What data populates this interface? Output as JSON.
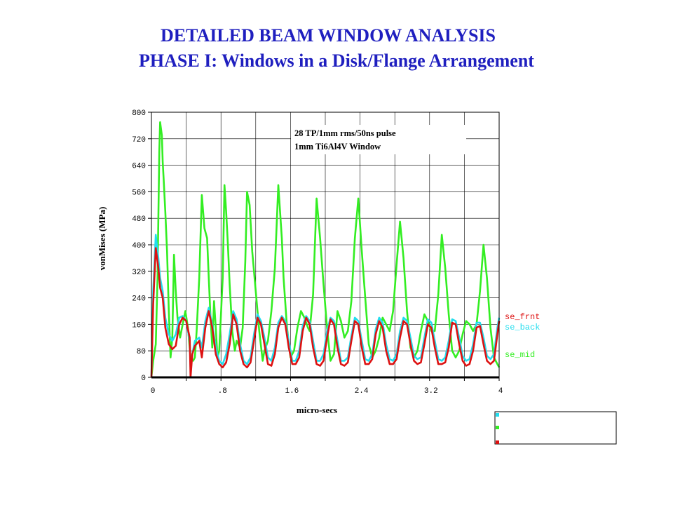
{
  "header": {
    "title": "DETAILED BEAM WINDOW ANALYSIS",
    "subtitle": "PHASE I: Windows in a Disk/Flange Arrangement"
  },
  "chart_data": {
    "type": "line",
    "xlabel": "micro-secs",
    "ylabel": "vonMises (MPa)",
    "xlim": [
      0,
      4
    ],
    "ylim": [
      0,
      800
    ],
    "x_ticks": [
      0,
      0.8,
      1.6,
      2.4,
      3.2,
      4
    ],
    "x_tick_labels": [
      "0",
      ".8",
      "1.6",
      "2.4",
      "3.2",
      "4"
    ],
    "y_ticks": [
      0,
      80,
      160,
      240,
      320,
      400,
      480,
      560,
      640,
      720,
      800
    ],
    "y_tick_labels": [
      "0",
      "80",
      "160",
      "240",
      "320",
      "400",
      "480",
      "560",
      "640",
      "720",
      "800"
    ],
    "grid": true,
    "annotation": [
      "28 TP/1mm rms/50ns pulse",
      "1mm Ti6Al4V Window"
    ],
    "legend_position": "right",
    "series": [
      {
        "name": "se_frnt",
        "color": "#dd1111",
        "x": [
          0,
          0.02,
          0.05,
          0.08,
          0.1,
          0.13,
          0.16,
          0.2,
          0.24,
          0.28,
          0.32,
          0.36,
          0.4,
          0.44,
          0.45,
          0.47,
          0.5,
          0.55,
          0.58,
          0.62,
          0.66,
          0.7,
          0.74,
          0.78,
          0.82,
          0.86,
          0.9,
          0.94,
          0.98,
          1.02,
          1.06,
          1.1,
          1.14,
          1.18,
          1.22,
          1.26,
          1.3,
          1.34,
          1.38,
          1.42,
          1.46,
          1.5,
          1.54,
          1.58,
          1.62,
          1.66,
          1.7,
          1.74,
          1.78,
          1.82,
          1.86,
          1.9,
          1.94,
          1.98,
          2.02,
          2.06,
          2.1,
          2.14,
          2.18,
          2.22,
          2.26,
          2.3,
          2.34,
          2.38,
          2.42,
          2.46,
          2.5,
          2.54,
          2.58,
          2.62,
          2.66,
          2.7,
          2.74,
          2.78,
          2.82,
          2.86,
          2.9,
          2.94,
          2.98,
          3.02,
          3.06,
          3.1,
          3.14,
          3.18,
          3.22,
          3.26,
          3.3,
          3.34,
          3.38,
          3.42,
          3.46,
          3.5,
          3.54,
          3.58,
          3.62,
          3.66,
          3.7,
          3.74,
          3.78,
          3.82,
          3.86,
          3.9,
          3.94,
          3.98,
          4.0
        ],
        "y": [
          0,
          220,
          390,
          330,
          270,
          240,
          150,
          100,
          85,
          95,
          160,
          180,
          170,
          120,
          0,
          70,
          95,
          110,
          60,
          150,
          200,
          150,
          70,
          40,
          30,
          45,
          100,
          190,
          160,
          80,
          40,
          30,
          45,
          110,
          180,
          160,
          100,
          40,
          35,
          70,
          150,
          180,
          160,
          90,
          40,
          40,
          60,
          140,
          180,
          160,
          90,
          40,
          35,
          50,
          120,
          175,
          160,
          90,
          40,
          35,
          45,
          110,
          170,
          160,
          90,
          40,
          40,
          55,
          130,
          170,
          150,
          80,
          40,
          40,
          55,
          120,
          170,
          160,
          100,
          50,
          40,
          45,
          100,
          160,
          150,
          90,
          40,
          40,
          45,
          90,
          165,
          160,
          100,
          50,
          35,
          40,
          80,
          150,
          155,
          100,
          50,
          40,
          50,
          130,
          170
        ]
      },
      {
        "name": "se_back",
        "color": "#22ddee",
        "x": [
          0,
          0.02,
          0.05,
          0.08,
          0.1,
          0.13,
          0.16,
          0.2,
          0.24,
          0.28,
          0.32,
          0.36,
          0.4,
          0.44,
          0.45,
          0.47,
          0.5,
          0.55,
          0.58,
          0.62,
          0.66,
          0.7,
          0.74,
          0.78,
          0.82,
          0.86,
          0.9,
          0.94,
          0.98,
          1.02,
          1.06,
          1.1,
          1.14,
          1.18,
          1.22,
          1.26,
          1.3,
          1.34,
          1.38,
          1.42,
          1.46,
          1.5,
          1.54,
          1.58,
          1.62,
          1.66,
          1.7,
          1.74,
          1.78,
          1.82,
          1.86,
          1.9,
          1.94,
          1.98,
          2.02,
          2.06,
          2.1,
          2.14,
          2.18,
          2.22,
          2.26,
          2.3,
          2.34,
          2.38,
          2.42,
          2.46,
          2.5,
          2.54,
          2.58,
          2.62,
          2.66,
          2.7,
          2.74,
          2.78,
          2.82,
          2.86,
          2.9,
          2.94,
          2.98,
          3.02,
          3.06,
          3.1,
          3.14,
          3.18,
          3.22,
          3.26,
          3.3,
          3.34,
          3.38,
          3.42,
          3.46,
          3.5,
          3.54,
          3.58,
          3.62,
          3.66,
          3.7,
          3.74,
          3.78,
          3.82,
          3.86,
          3.9,
          3.94,
          3.98,
          4.0
        ],
        "y": [
          0,
          260,
          430,
          360,
          300,
          260,
          180,
          130,
          110,
          130,
          180,
          185,
          170,
          110,
          30,
          70,
          110,
          120,
          90,
          170,
          210,
          160,
          90,
          50,
          40,
          70,
          130,
          200,
          175,
          100,
          50,
          40,
          60,
          130,
          190,
          170,
          120,
          60,
          50,
          90,
          165,
          185,
          170,
          110,
          50,
          50,
          80,
          155,
          185,
          170,
          110,
          50,
          50,
          70,
          140,
          180,
          170,
          110,
          50,
          50,
          60,
          125,
          180,
          170,
          110,
          55,
          50,
          70,
          145,
          180,
          165,
          100,
          55,
          50,
          70,
          140,
          180,
          170,
          120,
          65,
          55,
          60,
          120,
          175,
          165,
          110,
          55,
          50,
          60,
          110,
          175,
          170,
          120,
          65,
          50,
          55,
          100,
          165,
          165,
          120,
          65,
          55,
          70,
          150,
          180
        ]
      },
      {
        "name": "se_mid",
        "color": "#33ee22",
        "x": [
          0,
          0.02,
          0.05,
          0.07,
          0.09,
          0.1,
          0.12,
          0.13,
          0.14,
          0.16,
          0.18,
          0.2,
          0.22,
          0.24,
          0.26,
          0.28,
          0.3,
          0.33,
          0.36,
          0.39,
          0.42,
          0.45,
          0.48,
          0.5,
          0.52,
          0.55,
          0.58,
          0.61,
          0.64,
          0.66,
          0.68,
          0.7,
          0.72,
          0.74,
          0.76,
          0.78,
          0.82,
          0.84,
          0.86,
          0.88,
          0.9,
          0.93,
          0.96,
          0.98,
          1.0,
          1.02,
          1.05,
          1.08,
          1.1,
          1.13,
          1.16,
          1.2,
          1.24,
          1.28,
          1.3,
          1.34,
          1.38,
          1.42,
          1.46,
          1.5,
          1.52,
          1.56,
          1.6,
          1.64,
          1.68,
          1.72,
          1.76,
          1.8,
          1.82,
          1.86,
          1.9,
          1.94,
          1.98,
          2.02,
          2.06,
          2.1,
          2.14,
          2.18,
          2.22,
          2.26,
          2.3,
          2.34,
          2.38,
          2.42,
          2.46,
          2.5,
          2.54,
          2.58,
          2.62,
          2.66,
          2.7,
          2.74,
          2.78,
          2.82,
          2.86,
          2.9,
          2.94,
          2.98,
          3.02,
          3.06,
          3.1,
          3.14,
          3.18,
          3.22,
          3.26,
          3.3,
          3.34,
          3.38,
          3.42,
          3.46,
          3.5,
          3.54,
          3.58,
          3.62,
          3.66,
          3.7,
          3.74,
          3.78,
          3.82,
          3.86,
          3.9,
          3.94,
          3.98,
          4.0
        ],
        "y": [
          0,
          50,
          100,
          300,
          680,
          770,
          730,
          650,
          600,
          500,
          380,
          200,
          60,
          120,
          370,
          260,
          180,
          120,
          160,
          200,
          150,
          60,
          50,
          60,
          140,
          300,
          550,
          450,
          420,
          300,
          180,
          90,
          230,
          150,
          60,
          80,
          300,
          580,
          500,
          400,
          280,
          140,
          80,
          110,
          100,
          90,
          150,
          350,
          560,
          520,
          380,
          260,
          140,
          50,
          80,
          110,
          200,
          330,
          580,
          420,
          300,
          150,
          60,
          80,
          150,
          200,
          180,
          150,
          140,
          250,
          540,
          420,
          280,
          150,
          50,
          70,
          200,
          170,
          120,
          140,
          230,
          420,
          540,
          380,
          240,
          100,
          60,
          80,
          120,
          180,
          160,
          140,
          200,
          340,
          470,
          360,
          200,
          90,
          60,
          80,
          140,
          190,
          170,
          140,
          140,
          250,
          430,
          330,
          190,
          80,
          60,
          80,
          130,
          170,
          160,
          140,
          160,
          260,
          400,
          300,
          150,
          60,
          40,
          30
        ]
      }
    ]
  }
}
